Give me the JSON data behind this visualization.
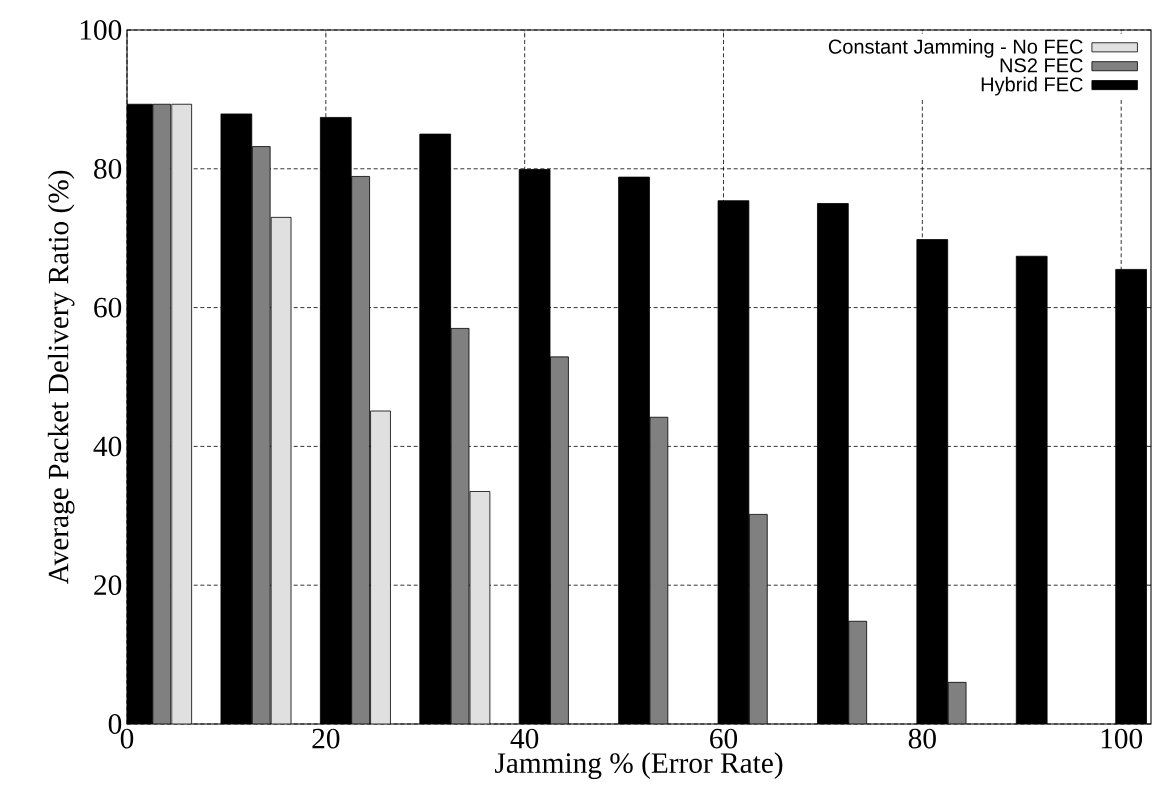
{
  "chart_data": {
    "type": "bar",
    "xlabel": "Jamming % (Error Rate)",
    "ylabel": "Average Packet Delivery Ratio (%)",
    "series": [
      {
        "name": "Constant Jamming - No FEC",
        "color": "#e0e0e0",
        "x": [
          5.5,
          15.5,
          25.5,
          35.5
        ],
        "values": [
          89.3,
          73.0,
          45.1,
          33.5
        ]
      },
      {
        "name": "NS2 FEC",
        "color": "#808080",
        "x": [
          3.5,
          13.5,
          23.5,
          33.5,
          43.5,
          53.5,
          63.5,
          73.5,
          83.5
        ],
        "values": [
          89.3,
          83.2,
          78.9,
          57.0,
          52.9,
          44.2,
          30.2,
          14.8,
          6.0
        ]
      },
      {
        "name": "Hybrid FEC",
        "color": "#000000",
        "x": [
          1,
          11,
          21,
          31,
          41,
          51,
          61,
          71,
          81,
          91,
          101
        ],
        "values": [
          89.3,
          87.9,
          87.4,
          85.0,
          79.9,
          78.8,
          75.4,
          75.0,
          69.8,
          67.4,
          65.5
        ]
      }
    ],
    "xlim": [
      0,
      103
    ],
    "ylim": [
      0,
      100
    ],
    "xticks": [
      0,
      20,
      40,
      60,
      80,
      100
    ],
    "yticks": [
      0,
      20,
      40,
      60,
      80,
      100
    ],
    "grid": true,
    "legend": "top right"
  }
}
